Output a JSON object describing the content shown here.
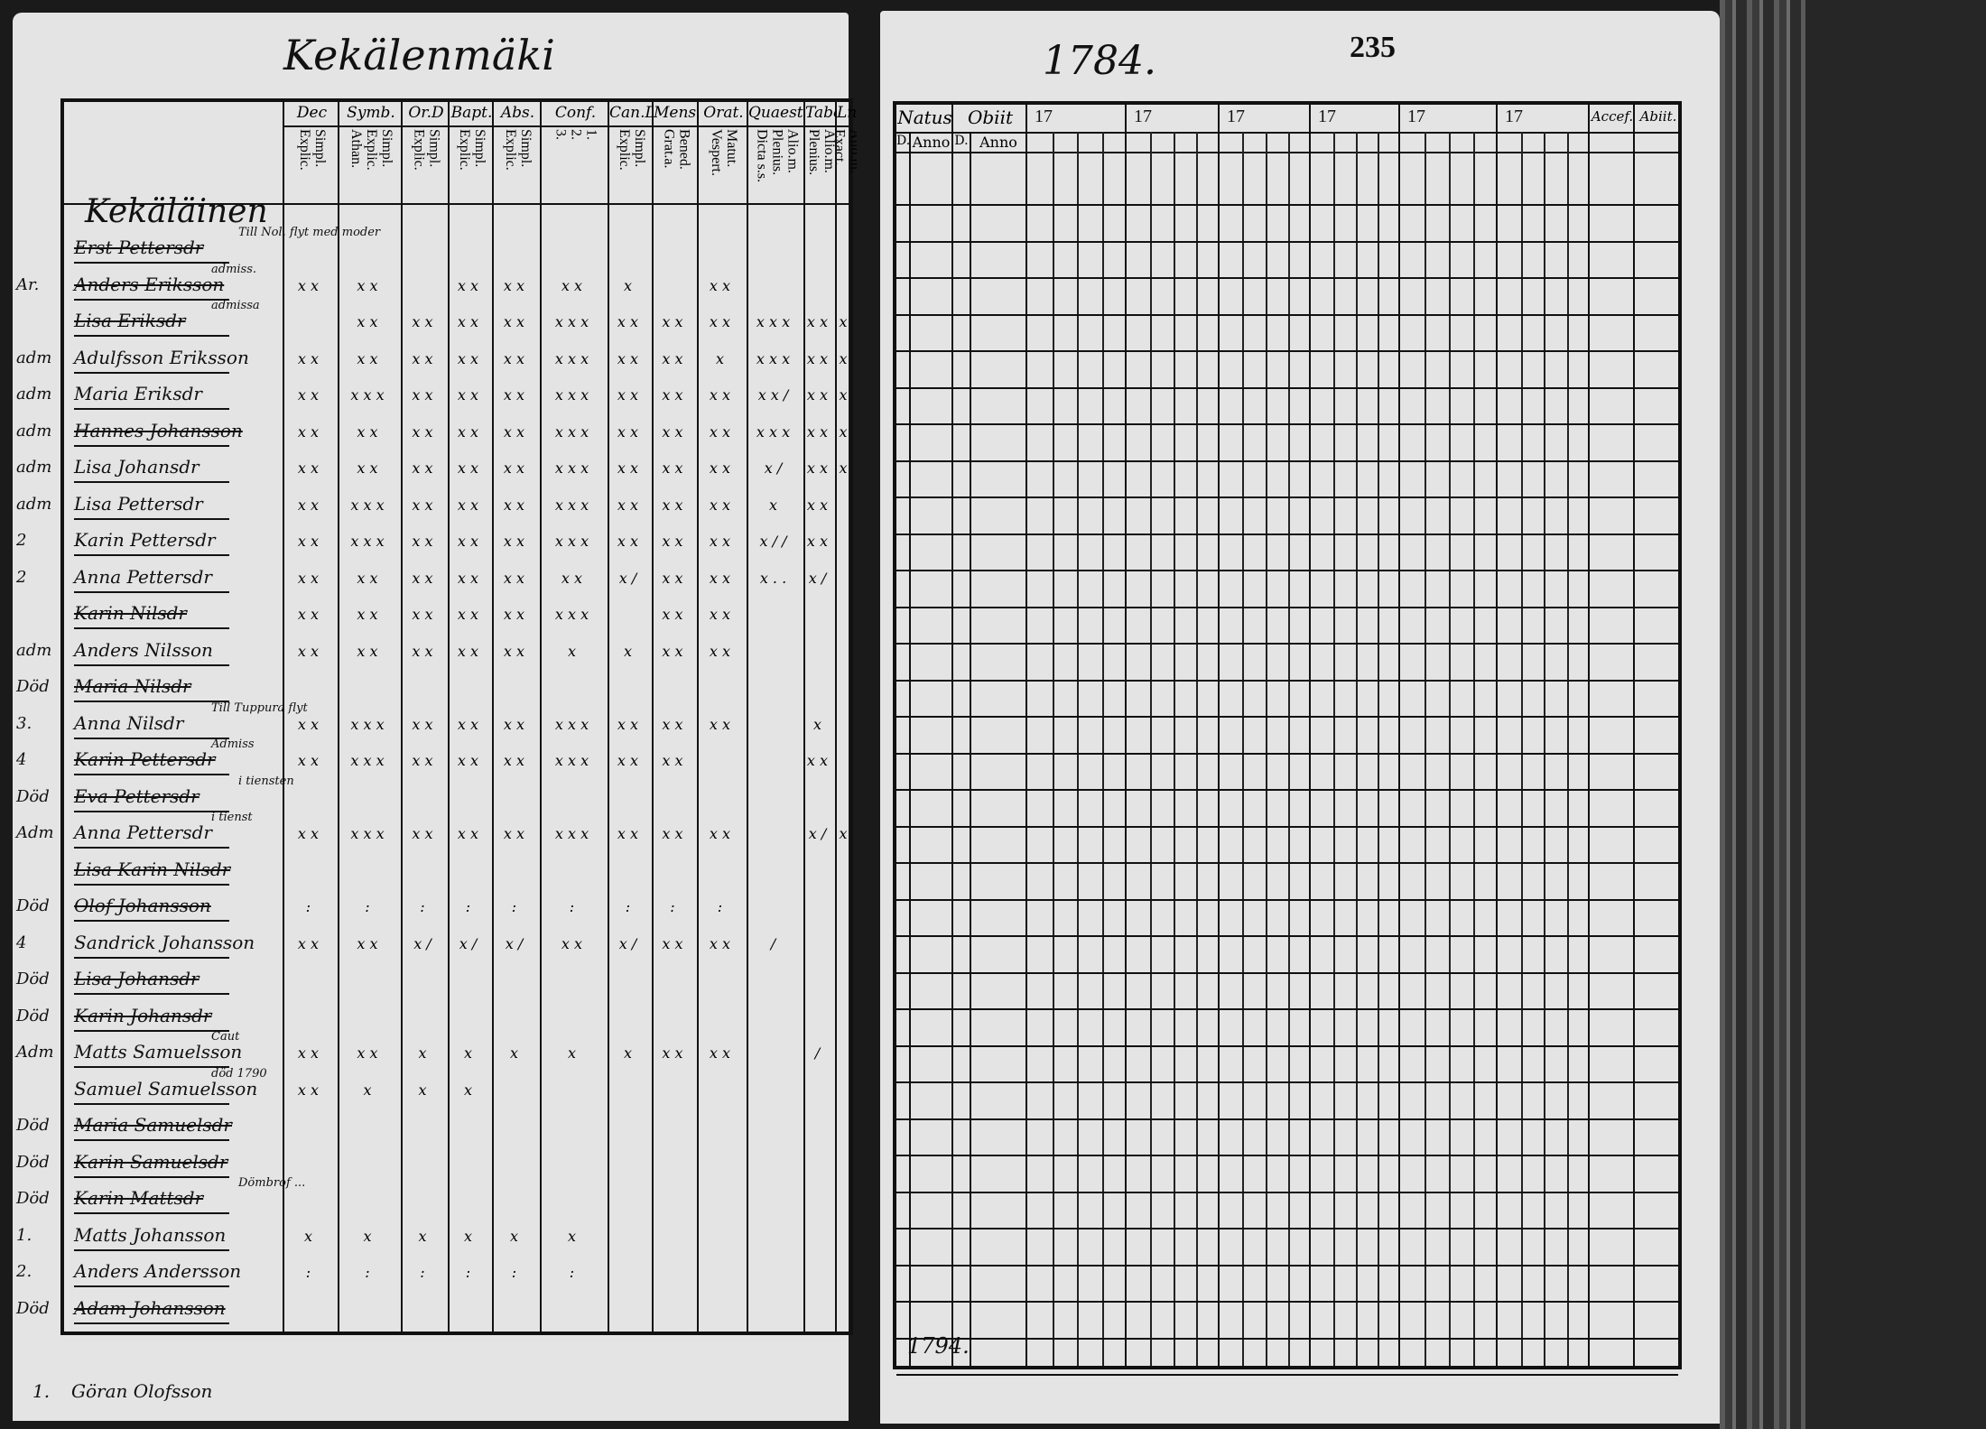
{
  "left_page": {
    "title": "Kekälenmäki",
    "section_heading": "Kekäläinen",
    "columns": [
      {
        "head": "Dec",
        "sub": [
          "Explic.",
          "Simpl."
        ]
      },
      {
        "head": "Symb.",
        "sub": [
          "Athan.",
          "Explic.",
          "Simpl."
        ]
      },
      {
        "head": "Or.D",
        "sub": [
          "Explic.",
          "Simpl."
        ]
      },
      {
        "head": "Bapt.",
        "sub": [
          "Explic.",
          "Simpl."
        ]
      },
      {
        "head": "Abs.",
        "sub": [
          "Explic.",
          "Simpl."
        ]
      },
      {
        "head": "Conf.",
        "sub": [
          "3.",
          "2.",
          "1."
        ]
      },
      {
        "head": "Can.D",
        "sub": [
          "Explic.",
          "Simpl."
        ]
      },
      {
        "head": "Mens.",
        "sub": [
          "Grat.a.",
          "Bened."
        ]
      },
      {
        "head": "Orat.",
        "sub": [
          "Vespert.",
          "Matut."
        ]
      },
      {
        "head": "Quaest.",
        "sub": [
          "Dicta s.s.",
          "Plenius.",
          "Alio.m."
        ]
      },
      {
        "head": "Tabe",
        "sub": [
          "Plenius.",
          "Alio.m."
        ]
      },
      {
        "head": "Ln",
        "sub": [
          "Exact.",
          "Alio.m."
        ]
      }
    ],
    "rows": [
      {
        "margin": "",
        "name": "Erst Pettersdr",
        "struck": true,
        "note": "Till Nol. flyt med moder",
        "marks": []
      },
      {
        "margin": "Ar.",
        "name": "Anders Eriksson",
        "struck": true,
        "note": "admiss.",
        "marks": [
          "x x",
          "x x",
          "",
          "x x",
          "x x",
          "x x",
          "x",
          "",
          "x x",
          "",
          "",
          ""
        ]
      },
      {
        "margin": "",
        "name": "Lisa Eriksdr",
        "struck": true,
        "note": "admissa",
        "marks": [
          "",
          "x x",
          "x x",
          "x x",
          "x x",
          "x x x",
          "x x",
          "x x",
          "x x",
          "x x x",
          "x x",
          "x"
        ]
      },
      {
        "margin": "adm",
        "name": "Adulfsson Eriksson",
        "struck": false,
        "note": "",
        "marks": [
          "x x",
          "x x",
          "x x",
          "x x",
          "x x",
          "x x x",
          "x x",
          "x x",
          "x",
          "x x x",
          "x x",
          "x"
        ]
      },
      {
        "margin": "adm",
        "name": "Maria Eriksdr",
        "struck": false,
        "note": "",
        "marks": [
          "x x",
          "x x x",
          "x x",
          "x x",
          "x x",
          "x x x",
          "x x",
          "x x",
          "x x",
          "x x /",
          "x x",
          "x"
        ]
      },
      {
        "margin": "adm",
        "name": "Hannes Johansson",
        "struck": true,
        "note": "",
        "marks": [
          "x x",
          "x x",
          "x x",
          "x x",
          "x x",
          "x x x",
          "x x",
          "x x",
          "x x",
          "x x x",
          "x x",
          "x"
        ]
      },
      {
        "margin": "adm",
        "name": "Lisa Johansdr",
        "struck": false,
        "note": "",
        "marks": [
          "x x",
          "x x",
          "x x",
          "x x",
          "x x",
          "x x x",
          "x x",
          "x x",
          "x x",
          "x /",
          "x x",
          "x"
        ]
      },
      {
        "margin": "adm",
        "name": "Lisa Pettersdr",
        "struck": false,
        "note": "",
        "marks": [
          "x x",
          "x x x",
          "x x",
          "x x",
          "x x",
          "x x x",
          "x x",
          "x x",
          "x x",
          "x",
          "x x",
          ""
        ]
      },
      {
        "margin": "2",
        "name": "Karin Pettersdr",
        "struck": false,
        "note": "",
        "marks": [
          "x x",
          "x x x",
          "x x",
          "x x",
          "x x",
          "x x x",
          "x x",
          "x x",
          "x x",
          "x / /",
          "x x",
          ""
        ]
      },
      {
        "margin": "2",
        "name": "Anna Pettersdr",
        "struck": false,
        "note": "",
        "marks": [
          "x x",
          "x x",
          "x x",
          "x x",
          "x x",
          "x x",
          "x /",
          "x x",
          "x x",
          "x . .",
          "x /",
          ""
        ]
      },
      {
        "margin": "",
        "name": "Karin Nilsdr",
        "struck": true,
        "note": "",
        "marks": [
          "x x",
          "x x",
          "x x",
          "x x",
          "x x",
          "x x x",
          "",
          "x x",
          "x x",
          "",
          "",
          ""
        ]
      },
      {
        "margin": "adm",
        "name": "Anders Nilsson",
        "struck": false,
        "note": "",
        "marks": [
          "x x",
          "x x",
          "x x",
          "x x",
          "x x",
          "x",
          "x",
          "x x",
          "x x",
          "",
          "",
          ""
        ]
      },
      {
        "margin": "Död",
        "name": "Maria Nilsdr",
        "struck": true,
        "note": "",
        "marks": []
      },
      {
        "margin": "3.",
        "name": "Anna Nilsdr",
        "struck": false,
        "note": "Till Tuppura flyt",
        "marks": [
          "x x",
          "x x x",
          "x x",
          "x x",
          "x x",
          "x x x",
          "x x",
          "x x",
          "x x",
          "",
          "x",
          ""
        ]
      },
      {
        "margin": "4",
        "name": "Karin Pettersdr",
        "struck": true,
        "note": "Admiss",
        "marks": [
          "x x",
          "x x x",
          "x x",
          "x x",
          "x x",
          "x x x",
          "x x",
          "x x",
          "",
          "",
          "x x",
          ""
        ]
      },
      {
        "margin": "Död",
        "name": "Eva Pettersdr",
        "struck": true,
        "note": "i tiensten",
        "marks": []
      },
      {
        "margin": "Adm",
        "name": "Anna Pettersdr",
        "struck": false,
        "note": "i tienst",
        "marks": [
          "x x",
          "x x x",
          "x x",
          "x x",
          "x x",
          "x x x",
          "x x",
          "x x",
          "x x",
          "",
          "x /",
          "x"
        ]
      },
      {
        "margin": "",
        "name": "Lisa Karin Nilsdr",
        "struck": true,
        "note": "",
        "marks": []
      },
      {
        "margin": "Död",
        "name": "Olof Johansson",
        "struck": true,
        "note": "",
        "marks": [
          ":",
          ":",
          ":",
          ":",
          ":",
          ":",
          ":",
          ":",
          ":",
          "",
          "",
          ""
        ]
      },
      {
        "margin": "4",
        "name": "Sandrick Johansson",
        "struck": false,
        "note": "",
        "marks": [
          "x x",
          "x x",
          "x /",
          "x /",
          "x /",
          "x x",
          "x /",
          "x x",
          "x x",
          "/",
          "",
          ""
        ]
      },
      {
        "margin": "Död",
        "name": "Lisa Johansdr",
        "struck": true,
        "note": "",
        "marks": []
      },
      {
        "margin": "Död",
        "name": "Karin Johansdr",
        "struck": true,
        "note": "",
        "marks": []
      },
      {
        "margin": "Adm",
        "name": "Matts Samuelsson",
        "struck": false,
        "note": "Caut",
        "marks": [
          "x x",
          "x x",
          "x",
          "x",
          "x",
          "x",
          "x",
          "x x",
          "x x",
          "",
          "/",
          ""
        ]
      },
      {
        "margin": "",
        "name": "Samuel Samuelsson",
        "struck": false,
        "note": "död 1790",
        "marks": [
          "x x",
          "x",
          "x",
          "x",
          "",
          "",
          "",
          "",
          "",
          "",
          "",
          ""
        ]
      },
      {
        "margin": "Död",
        "name": "Maria Samuelsdr",
        "struck": true,
        "note": "",
        "marks": []
      },
      {
        "margin": "Död",
        "name": "Karin Samuelsdr",
        "struck": true,
        "note": "",
        "marks": []
      },
      {
        "margin": "Död",
        "name": "Karin Mattsdr",
        "struck": true,
        "note": "Dömbrof ...",
        "marks": []
      },
      {
        "margin": "1.",
        "name": "Matts Johansson",
        "struck": false,
        "note": "",
        "marks": [
          "x",
          "x",
          "x",
          "x",
          "x",
          "x",
          "",
          "",
          "",
          "",
          "",
          ""
        ]
      },
      {
        "margin": "2.",
        "name": "Anders Andersson",
        "struck": false,
        "note": "",
        "marks": [
          ":",
          ":",
          ":",
          ":",
          ":",
          ":",
          "",
          "",
          "",
          "",
          "",
          ""
        ]
      },
      {
        "margin": "Död",
        "name": "Adam Johansson",
        "struck": true,
        "note": "",
        "marks": []
      }
    ],
    "footer_row": {
      "margin": "1.",
      "name": "Göran Olofsson"
    }
  },
  "right_page": {
    "year": "1784.",
    "page_number": "235",
    "natus": {
      "head": "Natus",
      "sub": [
        "D.",
        "Anno"
      ]
    },
    "obiit": {
      "head": "Obiit",
      "sub": [
        "D.",
        "Anno"
      ]
    },
    "year_columns": [
      "17",
      "17",
      "17",
      "17",
      "17",
      "17"
    ],
    "accessit": "Accef.",
    "abiit": "Abiit.",
    "bottom_note": "1794."
  },
  "colors": {
    "paper": "#e4e4e4",
    "ink": "#111111",
    "binding": "#3a3a3a"
  }
}
